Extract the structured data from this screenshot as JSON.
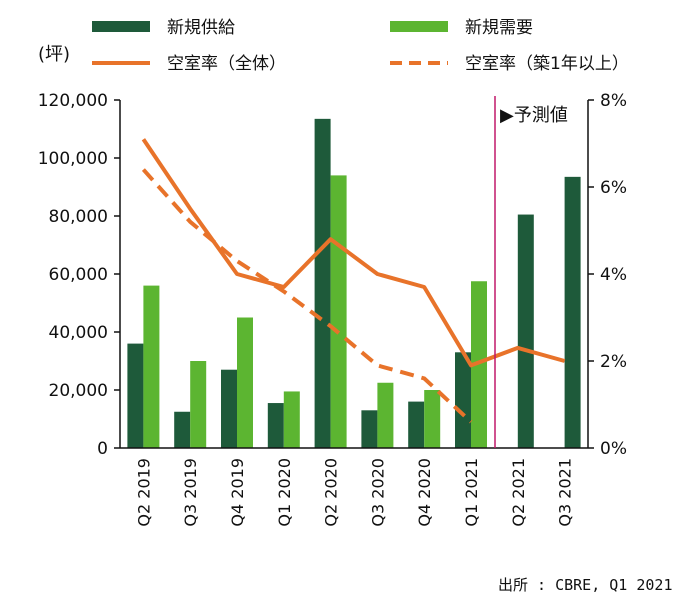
{
  "chart_data": {
    "type": "bar",
    "categories": [
      "Q2 2019",
      "Q3 2019",
      "Q4 2019",
      "Q1 2020",
      "Q2 2020",
      "Q3 2020",
      "Q4 2020",
      "Q1 2021",
      "Q2 2021",
      "Q3 2021"
    ],
    "series": [
      {
        "name": "新規供給",
        "kind": "bar",
        "axis": "left",
        "color": "#1e5a3a",
        "values": [
          36000,
          12500,
          27000,
          15500,
          113500,
          13000,
          16000,
          33000,
          80500,
          93500
        ]
      },
      {
        "name": "新規需要",
        "kind": "bar",
        "axis": "left",
        "color": "#5cb531",
        "values": [
          56000,
          30000,
          45000,
          19500,
          94000,
          22500,
          20000,
          57500,
          null,
          null
        ]
      },
      {
        "name": "空室率（全体）",
        "kind": "line",
        "axis": "right",
        "color": "#e8732a",
        "dash": "solid",
        "values": [
          7.1,
          5.5,
          4.0,
          3.7,
          4.8,
          4.0,
          3.7,
          1.9,
          2.3,
          2.0
        ]
      },
      {
        "name": "空室率（築1年以上）",
        "kind": "line",
        "axis": "right",
        "color": "#e8732a",
        "dash": "dashed",
        "values": [
          6.4,
          5.2,
          4.3,
          3.6,
          2.8,
          1.9,
          1.6,
          0.6,
          null,
          null
        ]
      }
    ],
    "yleft": {
      "unit": "(坪)",
      "ylim": [
        0,
        120000
      ],
      "ticks": [
        "0",
        "20,000",
        "40,000",
        "60,000",
        "80,000",
        "100,000",
        "120,000"
      ]
    },
    "yright": {
      "ylim": [
        0,
        8
      ],
      "ticks": [
        "0%",
        "2%",
        "4%",
        "6%",
        "8%"
      ]
    },
    "forecast": {
      "label": "▶予測値",
      "start_after": "Q1 2021",
      "color": "#c0186a"
    },
    "legend": {
      "placement": "top",
      "columns": 2
    },
    "source": "出所 : CBRE, Q1 2021",
    "grid": false
  }
}
